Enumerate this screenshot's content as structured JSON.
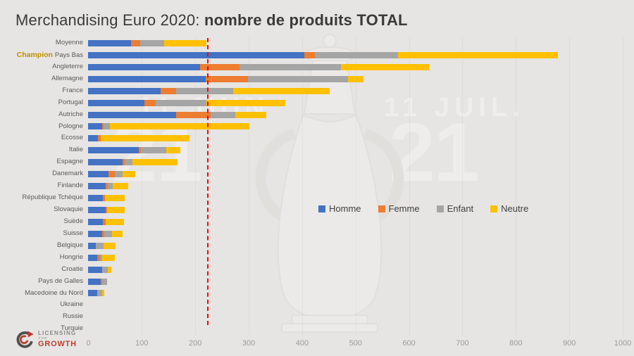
{
  "title": {
    "regular": "Merchandising Euro 2020: ",
    "bold": "nombre de produits TOTAL"
  },
  "watermark": {
    "left_date": "11 JUIN",
    "right_date": "11 JUIL.",
    "left_year": "21",
    "right_year": "21"
  },
  "logo": {
    "line1": "LICENSING",
    "line2": "FOR",
    "line3": "GROWTH"
  },
  "colors": {
    "background": "#e6e5e3",
    "homme": "#4472C4",
    "femme": "#ED7D31",
    "enfant": "#A5A5A5",
    "neutre": "#FFC000",
    "reference_line": "#FF0000",
    "champion_label": "#BF8F00"
  },
  "chart_data": {
    "type": "bar",
    "orientation": "horizontal",
    "stacked": true,
    "title": "Merchandising Euro 2020: nombre de produits TOTAL",
    "xlabel": "",
    "ylabel": "",
    "xlim": [
      0,
      1000
    ],
    "x_ticks": [
      0,
      100,
      200,
      300,
      400,
      500,
      600,
      700,
      800,
      900,
      1000
    ],
    "grid": true,
    "legend_position": "middle-right",
    "series_names": [
      "Homme",
      "Femme",
      "Enfant",
      "Neutre"
    ],
    "series_colors": [
      "#4472C4",
      "#ED7D31",
      "#A5A5A5",
      "#FFC000"
    ],
    "reference_line": {
      "value": 222,
      "color": "#FF0000",
      "style": "dashed",
      "meaning": "total Moyenne"
    },
    "rows": [
      {
        "label": "Moyenne",
        "values": [
          81,
          16,
          46,
          79
        ]
      },
      {
        "label": "Pays Bas",
        "prefix": "Champion",
        "values": [
          405,
          20,
          155,
          300
        ]
      },
      {
        "label": "Angleterre",
        "values": [
          210,
          73,
          190,
          165
        ]
      },
      {
        "label": "Allemagne",
        "values": [
          220,
          79,
          187,
          29
        ]
      },
      {
        "label": "France",
        "values": [
          136,
          29,
          106,
          181
        ]
      },
      {
        "label": "Portugal",
        "values": [
          105,
          21,
          96,
          147
        ]
      },
      {
        "label": "Autriche",
        "values": [
          165,
          64,
          46,
          59
        ]
      },
      {
        "label": "Pologne",
        "values": [
          26,
          3,
          12,
          261
        ]
      },
      {
        "label": "Ecosse",
        "values": [
          18,
          6,
          0,
          166
        ]
      },
      {
        "label": "Italie",
        "values": [
          95,
          4,
          47,
          27
        ]
      },
      {
        "label": "Espagne",
        "values": [
          64,
          4,
          15,
          84
        ]
      },
      {
        "label": "Danemark",
        "values": [
          38,
          12,
          15,
          24
        ]
      },
      {
        "label": "Finlande",
        "values": [
          33,
          4,
          9,
          29
        ]
      },
      {
        "label": "République Tchèque",
        "values": [
          28,
          3,
          0,
          37
        ]
      },
      {
        "label": "Slovaquie",
        "values": [
          33,
          2,
          0,
          33
        ]
      },
      {
        "label": "Suède",
        "values": [
          28,
          5,
          0,
          34
        ]
      },
      {
        "label": "Suisse",
        "values": [
          26,
          4,
          15,
          19
        ]
      },
      {
        "label": "Belgique",
        "values": [
          15,
          0,
          14,
          22
        ]
      },
      {
        "label": "Hongrie",
        "values": [
          17,
          6,
          4,
          23
        ]
      },
      {
        "label": "Croatie",
        "values": [
          27,
          0,
          10,
          7
        ]
      },
      {
        "label": "Pays de Galles",
        "values": [
          24,
          2,
          10,
          0
        ]
      },
      {
        "label": "Macedoine du Nord",
        "values": [
          17,
          0,
          9,
          4
        ]
      },
      {
        "label": "Ukraine",
        "values": [
          0,
          0,
          0,
          0
        ]
      },
      {
        "label": "Russie",
        "values": [
          0,
          0,
          0,
          0
        ]
      },
      {
        "label": "Turquie",
        "values": [
          0,
          0,
          0,
          0
        ]
      }
    ]
  }
}
